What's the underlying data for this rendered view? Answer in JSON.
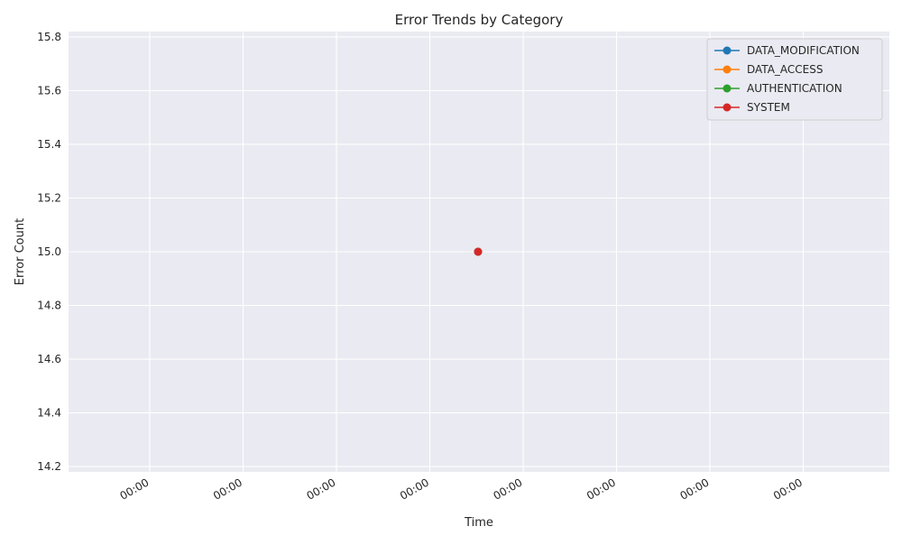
{
  "chart_data": {
    "type": "line",
    "title": "Error Trends by Category",
    "xlabel": "Time",
    "ylabel": "Error Count",
    "xticks": [
      "00:00",
      "00:00",
      "00:00",
      "00:00",
      "00:00",
      "00:00",
      "00:00",
      "00:00"
    ],
    "yticks": [
      "14.2",
      "14.4",
      "14.6",
      "14.8",
      "15.0",
      "15.2",
      "15.4",
      "15.6",
      "15.8"
    ],
    "ylim": [
      14.18,
      15.82
    ],
    "grid": true,
    "legend_position": "top-right",
    "series": [
      {
        "name": "DATA_MODIFICATION",
        "color": "#1f77b4",
        "points": [
          15
        ]
      },
      {
        "name": "DATA_ACCESS",
        "color": "#ff7f0e",
        "points": [
          15
        ]
      },
      {
        "name": "AUTHENTICATION",
        "color": "#2ca02c",
        "points": [
          15
        ]
      },
      {
        "name": "SYSTEM",
        "color": "#d62728",
        "points": [
          15
        ]
      }
    ],
    "colors": {
      "plot_background": "#eaeaf2",
      "grid": "#ffffff"
    }
  }
}
